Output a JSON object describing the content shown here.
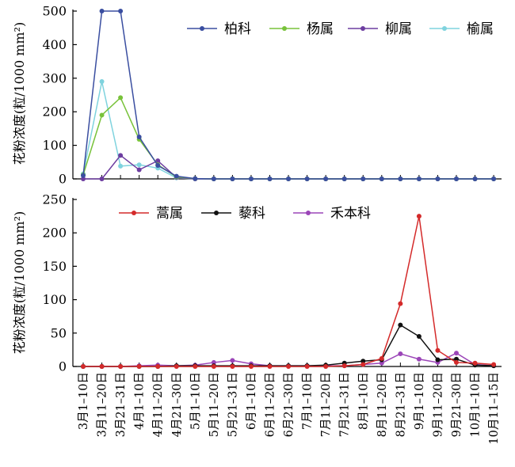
{
  "chart_data": [
    {
      "type": "line",
      "panel": "top",
      "title": "",
      "xlabel": "",
      "ylabel": "花粉浓度(粒/1000 mm²)",
      "ylim": [
        0,
        500
      ],
      "yticks": [
        0,
        100,
        200,
        300,
        400,
        500
      ],
      "grid": false,
      "legend_position": "top-right",
      "categories": [
        "3月1–10日",
        "3月11–20日",
        "3月21–31日",
        "4月1–10日",
        "4月11–20日",
        "4月21–30日",
        "5月1–10日",
        "5月11–20日",
        "5月21–31日",
        "6月1–10日",
        "6月11–20日",
        "6月21–30日",
        "7月1–10日",
        "7月11–20日",
        "7月21–31日",
        "8月1–10日",
        "8月11–20日",
        "8月21–31日",
        "9月1–10日",
        "9月11–20日",
        "9月21–30日",
        "10月1–10日",
        "10月11–15日"
      ],
      "series": [
        {
          "name": "柏科",
          "color": "#3a4ea0",
          "values": [
            10,
            500,
            500,
            125,
            40,
            8,
            1,
            0,
            0,
            0,
            0,
            0,
            0,
            0,
            0,
            0,
            0,
            0,
            0,
            0,
            0,
            0,
            0
          ]
        },
        {
          "name": "杨属",
          "color": "#78c23a",
          "values": [
            12,
            190,
            242,
            118,
            42,
            6,
            1,
            0,
            0,
            0,
            0,
            0,
            0,
            0,
            0,
            0,
            0,
            0,
            0,
            0,
            0,
            0,
            0
          ]
        },
        {
          "name": "柳属",
          "color": "#6d3da0",
          "values": [
            0,
            0,
            70,
            27,
            54,
            4,
            0,
            0,
            0,
            0,
            0,
            0,
            0,
            0,
            0,
            0,
            0,
            0,
            0,
            0,
            0,
            0,
            0
          ]
        },
        {
          "name": "榆属",
          "color": "#7fd3de",
          "values": [
            15,
            290,
            38,
            42,
            32,
            3,
            0,
            0,
            0,
            0,
            0,
            0,
            0,
            0,
            0,
            0,
            0,
            0,
            0,
            0,
            0,
            0,
            0
          ]
        }
      ]
    },
    {
      "type": "line",
      "panel": "bottom",
      "title": "",
      "xlabel": "",
      "ylabel": "花粉浓度(粒/1000 mm²)",
      "ylim": [
        0,
        250
      ],
      "yticks": [
        0,
        50,
        100,
        150,
        200,
        250
      ],
      "grid": false,
      "legend_position": "top-center",
      "categories": [
        "3月1–10日",
        "3月11–20日",
        "3月21–31日",
        "4月1–10日",
        "4月11–20日",
        "4月21–30日",
        "5月1–10日",
        "5月11–20日",
        "5月21–31日",
        "6月1–10日",
        "6月11–20日",
        "6月21–30日",
        "7月1–10日",
        "7月11–20日",
        "7月21–31日",
        "8月1–10日",
        "8月11–20日",
        "8月21–31日",
        "9月1–10日",
        "9月11–20日",
        "9月21–30日",
        "10月1–10日",
        "10月11–15日"
      ],
      "series": [
        {
          "name": "蒿属",
          "color": "#d42a2a",
          "values": [
            0,
            0,
            0,
            0,
            0,
            0,
            0,
            0,
            0,
            0,
            0,
            0,
            0,
            0,
            1,
            3,
            12,
            94,
            225,
            24,
            6,
            5,
            3
          ]
        },
        {
          "name": "藜科",
          "color": "#111111",
          "values": [
            0,
            0,
            0,
            0,
            0,
            1,
            1,
            1,
            1,
            1,
            1,
            1,
            1,
            2,
            5,
            8,
            10,
            62,
            45,
            10,
            11,
            2,
            1
          ]
        },
        {
          "name": "禾本科",
          "color": "#9b45b8",
          "values": [
            0,
            0,
            0,
            1,
            2,
            1,
            2,
            6,
            9,
            4,
            1,
            1,
            1,
            1,
            1,
            3,
            5,
            19,
            11,
            6,
            20,
            3,
            1
          ]
        }
      ]
    }
  ]
}
